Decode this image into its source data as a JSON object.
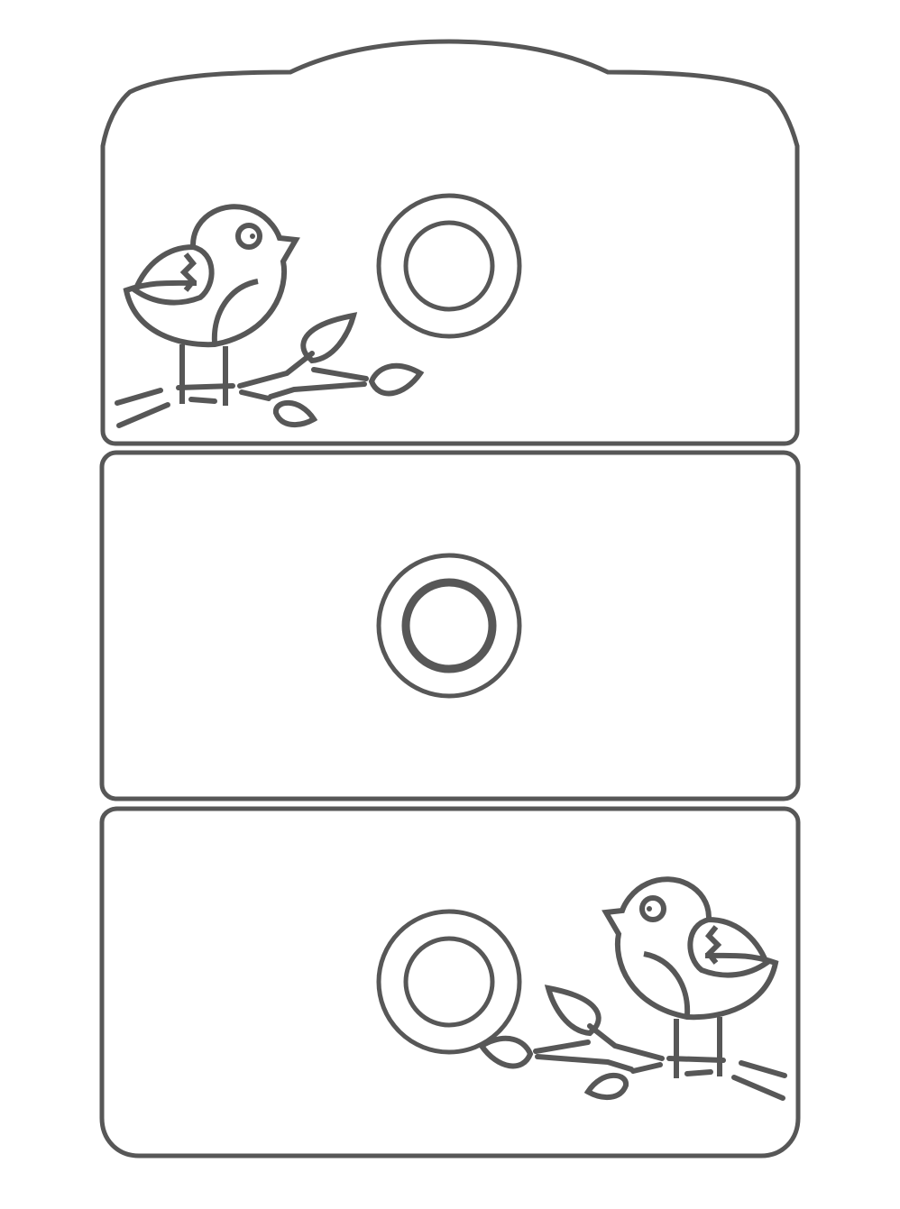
{
  "colors": {
    "background": "#ffffff",
    "stroke": "#575757"
  },
  "drawer_top": {
    "knob_icon": "double-ring-knob",
    "decoration": "bird-on-branch-facing-right"
  },
  "drawer_middle": {
    "knob_icon": "double-ring-knob"
  },
  "drawer_bottom": {
    "knob_icon": "double-ring-knob",
    "decoration": "bird-on-branch-facing-left"
  }
}
